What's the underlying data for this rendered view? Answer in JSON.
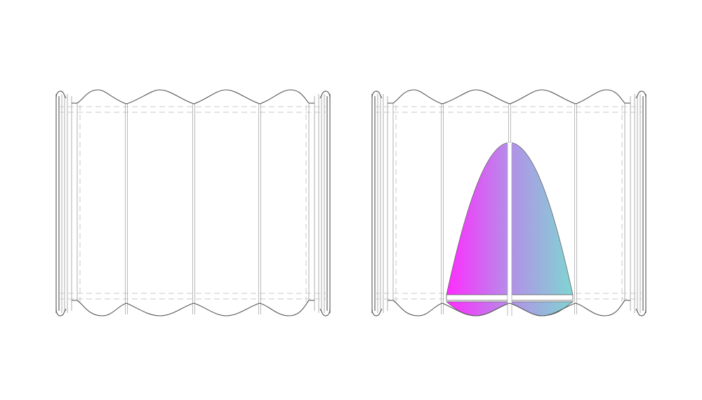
{
  "figure": {
    "views": [
      {
        "id": "left-view",
        "shaded": false
      },
      {
        "id": "right-view",
        "shaded": true
      }
    ],
    "colors": {
      "background": "#ffffff",
      "outline": "#555555",
      "hidden_line": "#c8c8c8",
      "gradient_start": "#ff2bff",
      "gradient_mid": "#b48fe8",
      "gradient_end": "#7fd6d2"
    }
  }
}
